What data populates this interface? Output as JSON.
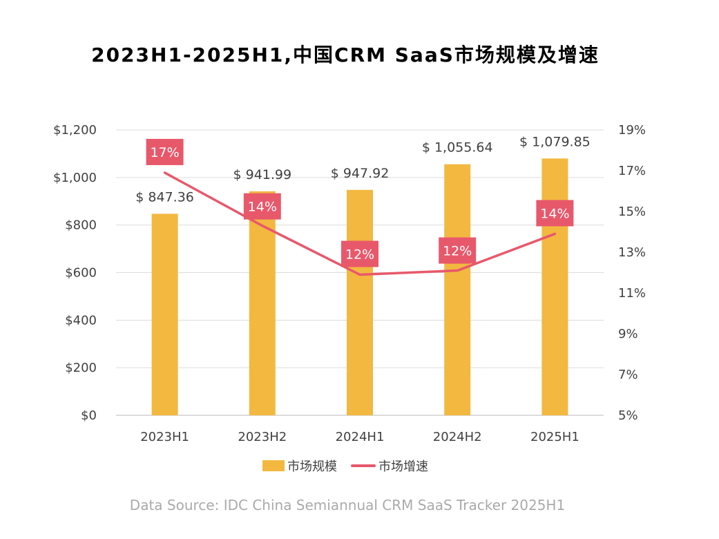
{
  "chart_data": {
    "type": "bar+line",
    "title": "2023H1-2025H1,中国CRM  SaaS市场规模及增速",
    "categories": [
      "2023H1",
      "2023H2",
      "2024H1",
      "2024H2",
      "2025H1"
    ],
    "series": [
      {
        "name": "市场规模",
        "type": "bar",
        "axis": "left",
        "values": [
          847.36,
          941.99,
          947.92,
          1055.64,
          1079.85
        ],
        "labels": [
          "$ 847.36",
          "$ 941.99",
          "$ 947.92",
          "$ 1,055.64",
          "$ 1,079.85"
        ],
        "color": "#F2B840"
      },
      {
        "name": "市场增速",
        "type": "line",
        "axis": "right",
        "values": [
          16.9,
          14.3,
          11.9,
          12.1,
          13.9
        ],
        "labels": [
          "17%",
          "14%",
          "12%",
          "12%",
          "14%"
        ],
        "color": "#E8586B"
      }
    ],
    "y_left": {
      "min": 0,
      "max": 1200,
      "ticks": [
        0,
        200,
        400,
        600,
        800,
        1000,
        1200
      ],
      "tick_labels": [
        "$0",
        "$200",
        "$400",
        "$600",
        "$800",
        "$1,000",
        "$1,200"
      ]
    },
    "y_right": {
      "min": 5,
      "max": 19,
      "ticks": [
        5,
        7,
        9,
        11,
        13,
        15,
        17,
        19
      ],
      "tick_labels": [
        "5%",
        "7%",
        "9%",
        "11%",
        "13%",
        "15%",
        "17%",
        "19%"
      ]
    },
    "grid": true,
    "legend": "bottom-center",
    "legend_labels": [
      "市场规模",
      "市场增速"
    ],
    "source": "Data Source: IDC China Semiannual CRM SaaS Tracker 2025H1"
  }
}
